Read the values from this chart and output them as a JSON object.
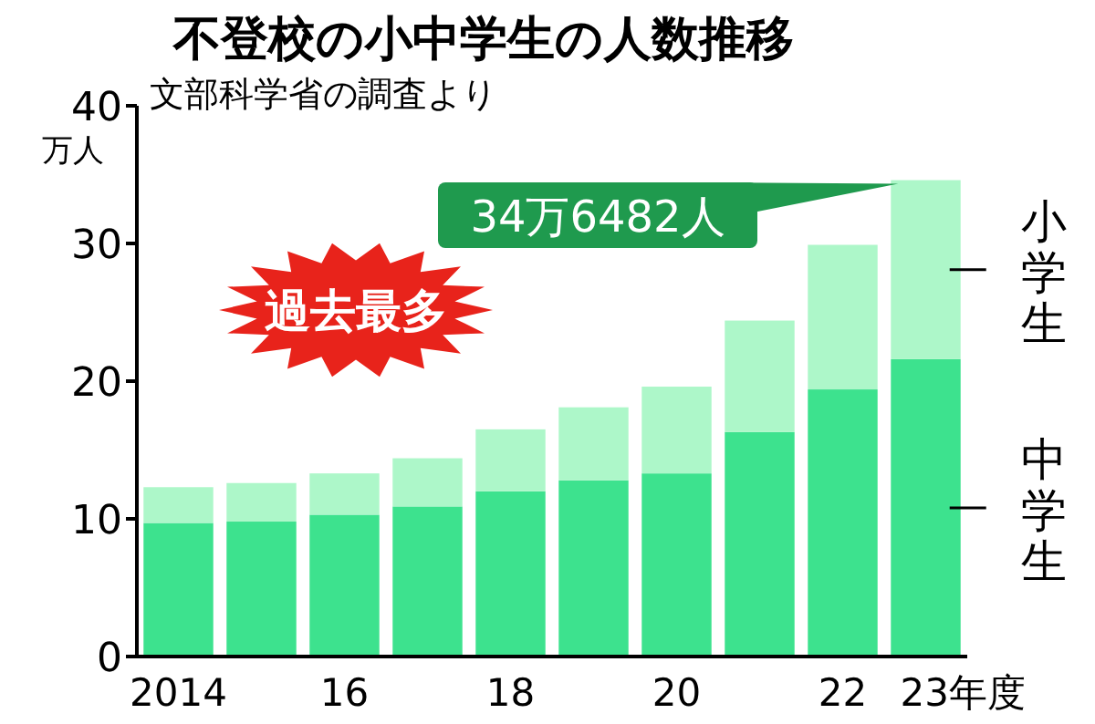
{
  "chart_data": {
    "type": "bar",
    "stacked": true,
    "title": "不登校の小中学生の人数推移",
    "subtitle": "文部科学省の調査より",
    "ylabel": "万人",
    "categories": [
      "2014",
      null,
      "16",
      null,
      "18",
      null,
      "20",
      null,
      "22",
      "23年度"
    ],
    "series": [
      {
        "name": "中学生",
        "color": "#3de28e",
        "values": [
          9.7,
          9.8,
          10.3,
          10.9,
          12.0,
          12.8,
          13.3,
          16.3,
          19.4,
          21.6
        ]
      },
      {
        "name": "小学生",
        "color": "#adf7c9",
        "values": [
          2.6,
          2.8,
          3.0,
          3.5,
          4.5,
          5.3,
          6.3,
          8.1,
          10.5,
          13.0
        ]
      }
    ],
    "ylim": [
      0,
      40
    ],
    "yticks": [
      0,
      10,
      20,
      30,
      40
    ],
    "legend": "right",
    "annotations": [
      "34万6482人",
      "過去最多"
    ]
  }
}
